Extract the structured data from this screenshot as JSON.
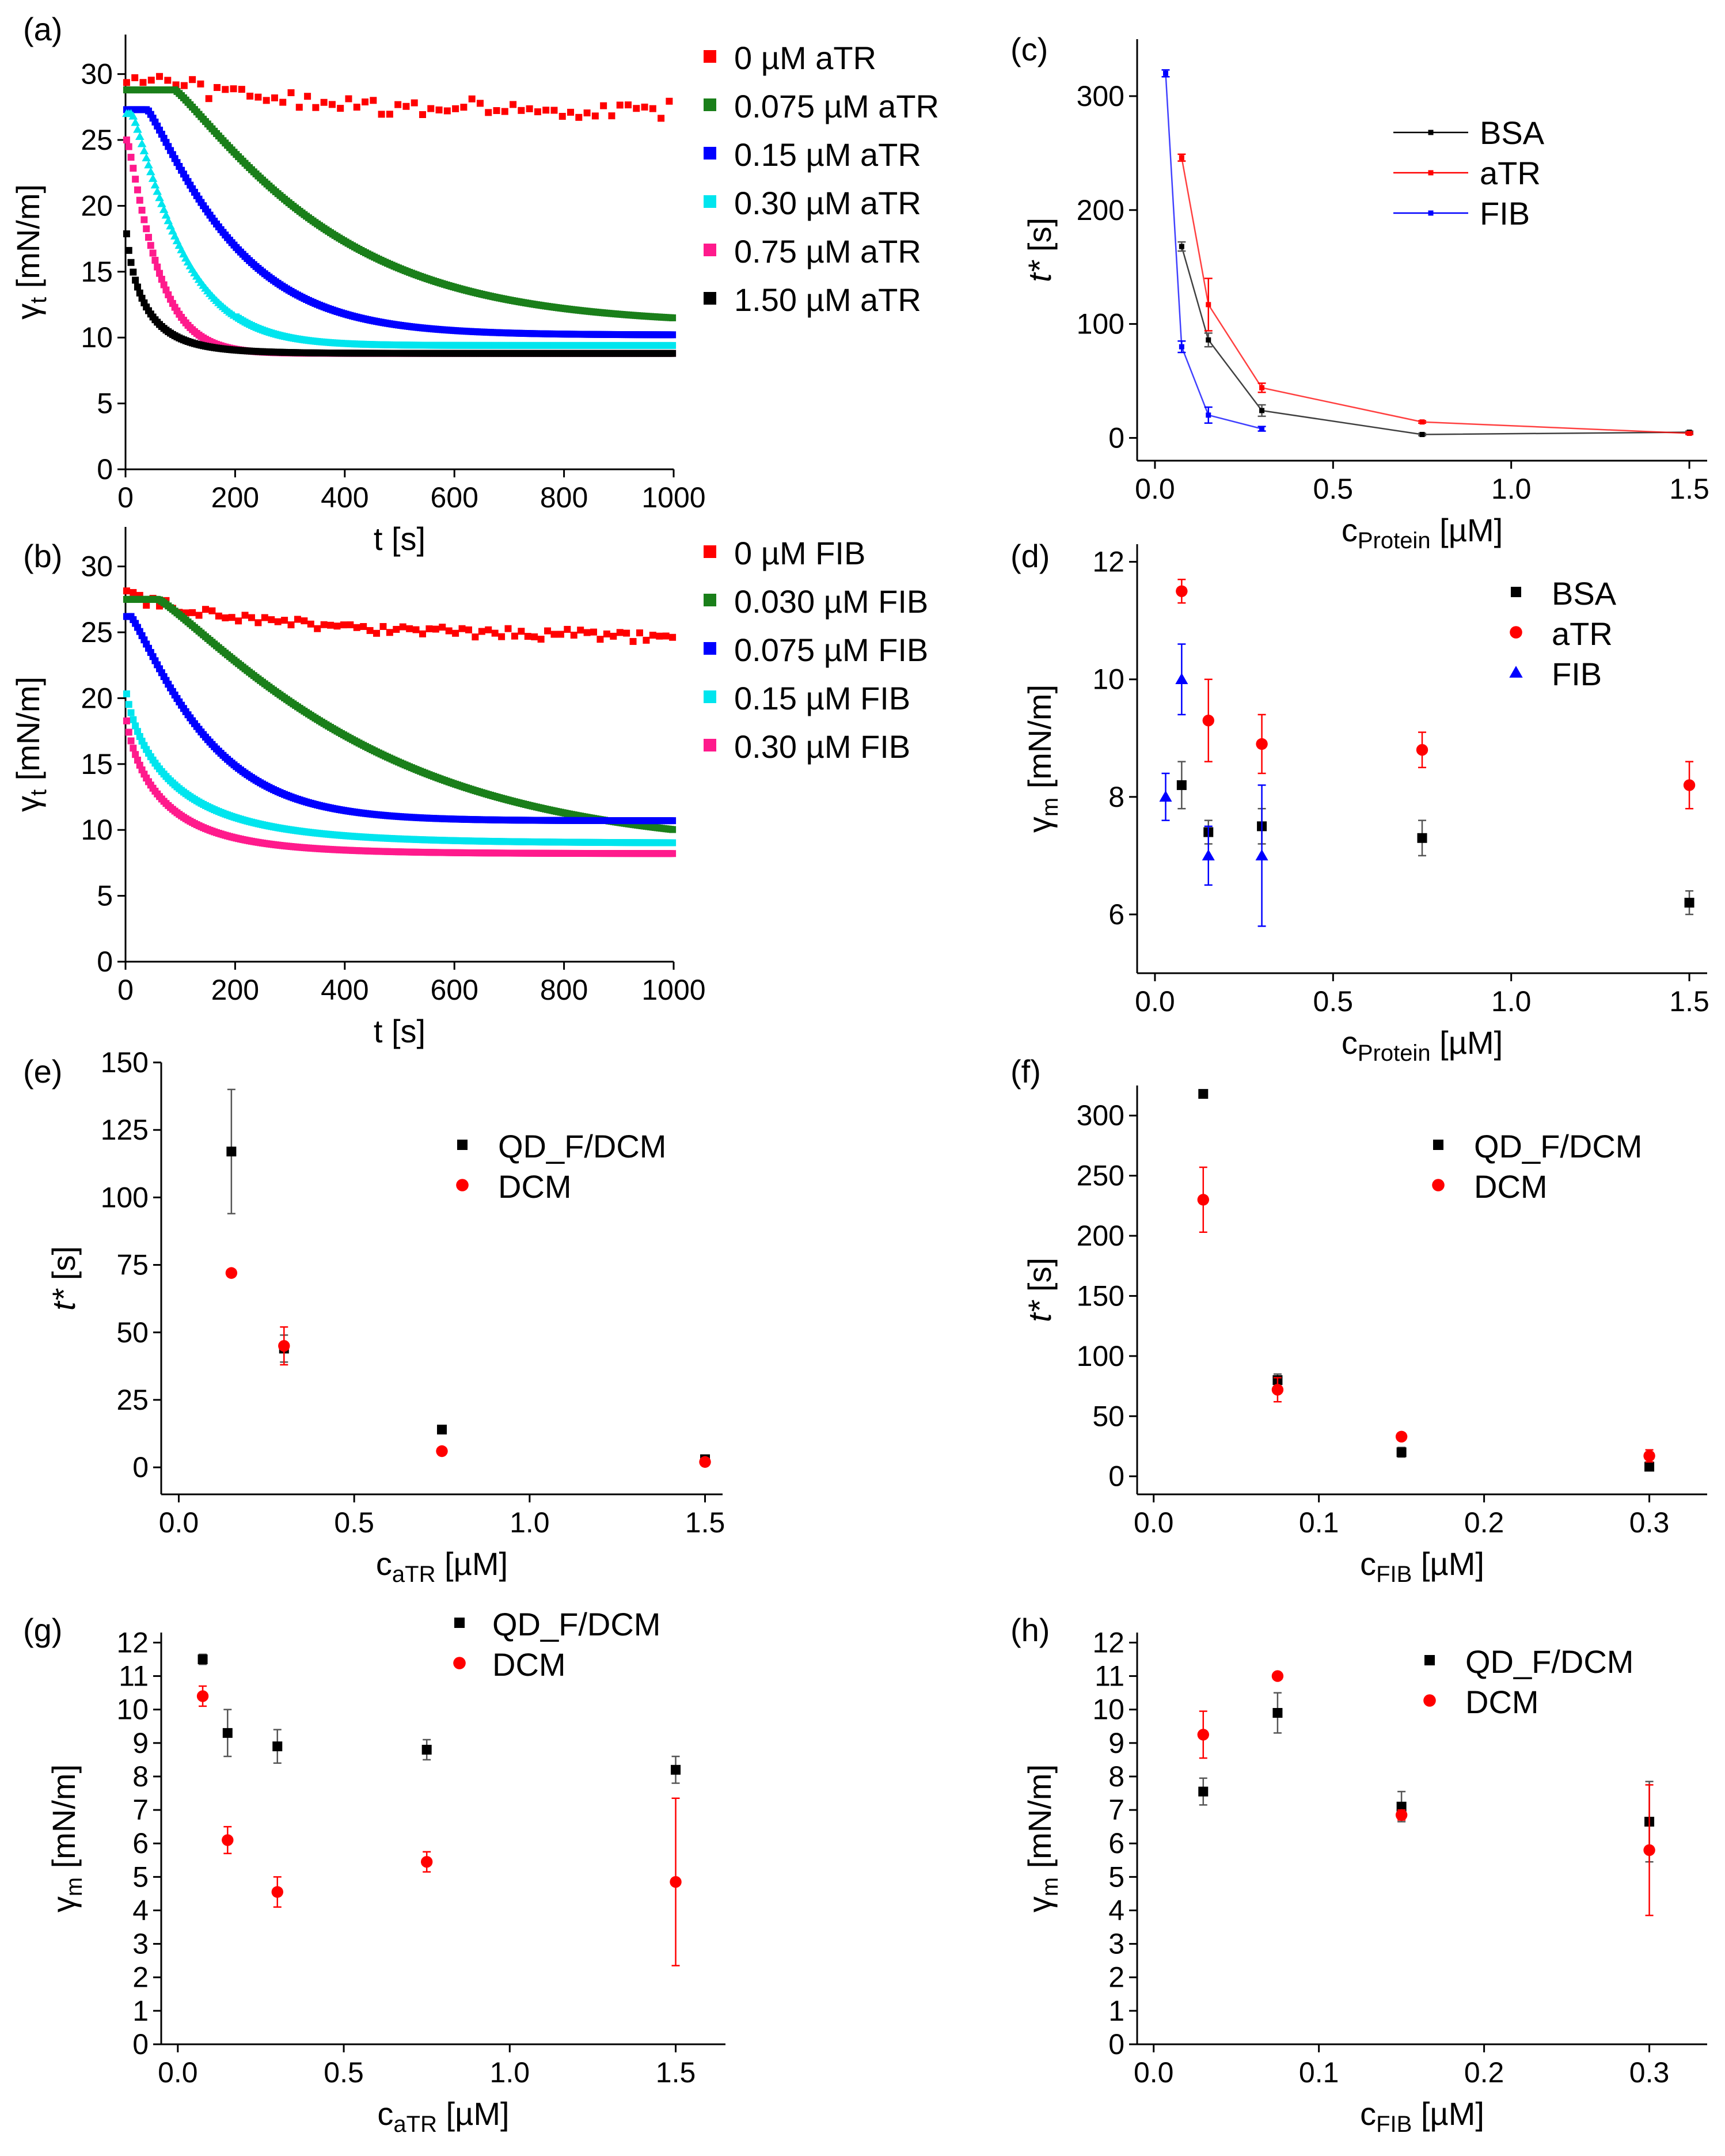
{
  "chart_data": [
    {
      "id": "a",
      "label": "(a)",
      "type": "scatter",
      "xlabel": "t [s]",
      "ylabel": "γt [mN/m]",
      "ylabel_main": "γ",
      "ylabel_sub": "t",
      "ylabel_rest": " [mN/m]",
      "xlim": [
        0,
        1000
      ],
      "ylim": [
        0,
        33
      ],
      "xticks": [
        0,
        200,
        400,
        600,
        800,
        1000
      ],
      "yticks": [
        0,
        5,
        10,
        15,
        20,
        25,
        30
      ],
      "legend_position": "right",
      "series": [
        {
          "name": "0 µM aTR",
          "color": "#ff0000",
          "marker": "square",
          "style": "noisy",
          "y0": 30.0,
          "yinf": 27.2,
          "tau": 250,
          "noise": 0.7,
          "step": 15
        },
        {
          "name": "0.075 µM aTR",
          "color": "#1a7f1a",
          "marker": "square",
          "style": "curve",
          "y0": 28.8,
          "yinf": 11.0,
          "tau": 300,
          "lag": 90,
          "step": 4
        },
        {
          "name": "0.15 µM aTR",
          "color": "#0000ff",
          "marker": "square",
          "style": "curve",
          "y0": 27.3,
          "yinf": 10.2,
          "tau": 170,
          "lag": 40,
          "step": 4
        },
        {
          "name": "0.30 µM aTR",
          "color": "#00e5ee",
          "marker": "triangle",
          "style": "curve",
          "y0": 27.0,
          "yinf": 9.4,
          "tau": 100,
          "lag": 12,
          "step": 4
        },
        {
          "name": "0.75 µM aTR",
          "color": "#ff1a8c",
          "marker": "square",
          "style": "curve",
          "y0": 25.0,
          "yinf": 8.8,
          "tau": 60,
          "lag": 3,
          "step": 4
        },
        {
          "name": "1.50 µM aTR",
          "color": "#000000",
          "marker": "square",
          "style": "curve",
          "y0": 19.0,
          "yinf": 8.8,
          "tau": 35,
          "lag": 0,
          "step": 4
        }
      ]
    },
    {
      "id": "b",
      "label": "(b)",
      "type": "scatter",
      "xlabel": "t [s]",
      "ylabel": "γt [mN/m]",
      "ylabel_main": "γ",
      "ylabel_sub": "t",
      "ylabel_rest": " [mN/m]",
      "xlim": [
        0,
        1000
      ],
      "ylim": [
        0,
        33
      ],
      "xticks": [
        0,
        200,
        400,
        600,
        800,
        1000
      ],
      "yticks": [
        0,
        5,
        10,
        15,
        20,
        25,
        30
      ],
      "legend_position": "right",
      "series": [
        {
          "name": "0 µM FIB",
          "color": "#ff0000",
          "marker": "square",
          "style": "noisy",
          "y0": 27.8,
          "yinf": 24.6,
          "tau": 300,
          "noise": 0.45,
          "step": 12
        },
        {
          "name": "0.030 µM FIB",
          "color": "#1a7f1a",
          "marker": "square",
          "style": "curve",
          "y0": 27.5,
          "yinf": 8.5,
          "tau": 420,
          "lag": 60,
          "step": 4
        },
        {
          "name": "0.075 µM FIB",
          "color": "#0000ff",
          "marker": "square",
          "style": "curve",
          "y0": 26.2,
          "yinf": 10.7,
          "tau": 150,
          "lag": 10,
          "step": 4
        },
        {
          "name": "0.15 µM FIB",
          "color": "#00e5ee",
          "marker": "square",
          "style": "curve",
          "y0": 21.0,
          "yinf": 9.0,
          "tau": 90,
          "lag": 0,
          "step": 4
        },
        {
          "name": "0.30 µM FIB",
          "color": "#ff1a8c",
          "marker": "square",
          "style": "curve",
          "y0": 19.0,
          "yinf": 8.2,
          "tau": 70,
          "lag": 0,
          "step": 4
        }
      ]
    },
    {
      "id": "c",
      "label": "(c)",
      "type": "line",
      "xlabel": "cProtein [µM]",
      "xlabel_main": "c",
      "xlabel_sub": "Protein",
      "xlabel_rest": " [µM]",
      "ylabel": "t* [s]",
      "ylabel_italic": "t*",
      "ylabel_rest": " [s]",
      "xlim": [
        -0.05,
        1.55
      ],
      "ylim": [
        -20,
        350
      ],
      "xticks": [
        0.0,
        0.5,
        1.0,
        1.5
      ],
      "xtick_labels": [
        "0.0",
        "0.5",
        "1.0",
        "1.5"
      ],
      "yticks": [
        0,
        100,
        200,
        300
      ],
      "legend_position": "top-center",
      "series": [
        {
          "name": "BSA",
          "color": "#000000",
          "marker": "square",
          "line": true,
          "x": [
            0.075,
            0.15,
            0.3,
            0.75,
            1.5
          ],
          "y": [
            168,
            86,
            24,
            3,
            5
          ],
          "err": [
            4,
            6,
            5,
            1,
            1
          ]
        },
        {
          "name": "aTR",
          "color": "#ff0000",
          "marker": "square",
          "line": true,
          "x": [
            0.075,
            0.15,
            0.3,
            0.75,
            1.5
          ],
          "y": [
            246,
            117,
            44,
            14,
            4
          ],
          "err": [
            3,
            23,
            4,
            1,
            1
          ]
        },
        {
          "name": "FIB",
          "color": "#0000ff",
          "marker": "square",
          "line": true,
          "x": [
            0.03,
            0.075,
            0.15,
            0.3
          ],
          "y": [
            320,
            80,
            20,
            8
          ],
          "err": [
            3,
            5,
            7,
            2
          ]
        }
      ]
    },
    {
      "id": "d",
      "label": "(d)",
      "type": "scatter",
      "xlabel": "cProtein [µM]",
      "xlabel_main": "c",
      "xlabel_sub": "Protein",
      "xlabel_rest": " [µM]",
      "ylabel": "γm [mN/m]",
      "ylabel_main": "γ",
      "ylabel_sub": "m",
      "ylabel_rest": " [mN/m]",
      "xlim": [
        -0.05,
        1.55
      ],
      "ylim": [
        5,
        12.3
      ],
      "xticks": [
        0.0,
        0.5,
        1.0,
        1.5
      ],
      "xtick_labels": [
        "0.0",
        "0.5",
        "1.0",
        "1.5"
      ],
      "yticks": [
        6,
        8,
        10,
        12
      ],
      "legend_position": "top-center",
      "series": [
        {
          "name": "BSA",
          "color": "#000000",
          "marker": "square",
          "x": [
            0.075,
            0.15,
            0.3,
            0.75,
            1.5
          ],
          "y": [
            8.2,
            7.4,
            7.5,
            7.3,
            6.2
          ],
          "err": [
            0.4,
            0.2,
            0.3,
            0.3,
            0.2
          ]
        },
        {
          "name": "aTR",
          "color": "#ff0000",
          "marker": "circle",
          "x": [
            0.075,
            0.15,
            0.3,
            0.75,
            1.5
          ],
          "y": [
            11.5,
            9.3,
            8.9,
            8.8,
            8.2
          ],
          "err": [
            0.2,
            0.7,
            0.5,
            0.3,
            0.4
          ]
        },
        {
          "name": "FIB",
          "color": "#0000ff",
          "marker": "triangle",
          "x": [
            0.03,
            0.075,
            0.15,
            0.3
          ],
          "y": [
            8.0,
            10.0,
            7.0,
            7.0
          ],
          "err": [
            0.4,
            0.6,
            0.5,
            1.2
          ]
        }
      ]
    },
    {
      "id": "e",
      "label": "(e)",
      "type": "scatter",
      "xlabel": "caTR [µM]",
      "xlabel_main": "c",
      "xlabel_sub": "aTR",
      "xlabel_rest": " [µM]",
      "ylabel": "t* [s]",
      "ylabel_italic": "t*",
      "ylabel_rest": " [s]",
      "xlim": [
        -0.05,
        1.55
      ],
      "ylim": [
        -10,
        150
      ],
      "xticks": [
        0.0,
        0.5,
        1.0,
        1.5
      ],
      "xtick_labels": [
        "0.0",
        "0.5",
        "1.0",
        "1.5"
      ],
      "yticks": [
        0,
        25,
        50,
        75,
        100,
        125,
        150
      ],
      "legend_position": "top-center",
      "series": [
        {
          "name": "QD_F/DCM",
          "color": "#000000",
          "marker": "square",
          "x": [
            0.15,
            0.3,
            0.75,
            1.5
          ],
          "y": [
            117,
            44,
            14,
            3
          ],
          "err": [
            23,
            5,
            1,
            1
          ]
        },
        {
          "name": "DCM",
          "color": "#ff0000",
          "marker": "circle",
          "x": [
            0.15,
            0.3,
            0.75,
            1.5
          ],
          "y": [
            72,
            45,
            6,
            2
          ],
          "err": [
            1,
            7,
            1,
            1
          ]
        }
      ]
    },
    {
      "id": "f",
      "label": "(f)",
      "type": "scatter",
      "xlabel": "cFIB [µM]",
      "xlabel_main": "c",
      "xlabel_sub": "FIB",
      "xlabel_rest": " [µM]",
      "ylabel": "t* [s]",
      "ylabel_italic": "t*",
      "ylabel_rest": " [s]",
      "xlim": [
        -0.01,
        0.335
      ],
      "ylim": [
        -15,
        325
      ],
      "xticks": [
        0.0,
        0.1,
        0.2,
        0.3
      ],
      "xtick_labels": [
        "0.0",
        "0.1",
        "0.2",
        "0.3"
      ],
      "yticks": [
        0,
        50,
        100,
        150,
        200,
        250,
        300
      ],
      "legend_position": "top-center",
      "series": [
        {
          "name": "QD_F/DCM",
          "color": "#000000",
          "marker": "square",
          "x": [
            0.03,
            0.075,
            0.15,
            0.3
          ],
          "y": [
            318,
            80,
            20,
            8
          ],
          "err": [
            2,
            5,
            4,
            2
          ]
        },
        {
          "name": "DCM",
          "color": "#ff0000",
          "marker": "circle",
          "x": [
            0.03,
            0.075,
            0.15,
            0.3
          ],
          "y": [
            230,
            72,
            33,
            17
          ],
          "err": [
            27,
            10,
            3,
            5
          ]
        }
      ]
    },
    {
      "id": "g",
      "label": "(g)",
      "type": "scatter",
      "xlabel": "caTR [µM]",
      "xlabel_main": "c",
      "xlabel_sub": "aTR",
      "xlabel_rest": " [µM]",
      "ylabel": "γm [mN/m]",
      "ylabel_main": "γ",
      "ylabel_sub": "m",
      "ylabel_rest": " [mN/m]",
      "xlim": [
        -0.05,
        1.65
      ],
      "ylim": [
        0,
        12.3
      ],
      "xticks": [
        0.0,
        0.5,
        1.0,
        1.5
      ],
      "xtick_labels": [
        "0.0",
        "0.5",
        "1.0",
        "1.5"
      ],
      "yticks": [
        0,
        1,
        2,
        3,
        4,
        5,
        6,
        7,
        8,
        9,
        10,
        11,
        12
      ],
      "legend_position": "top-right",
      "series": [
        {
          "name": "QD_F/DCM",
          "color": "#000000",
          "marker": "square",
          "x": [
            0.075,
            0.15,
            0.3,
            0.75,
            1.5
          ],
          "y": [
            11.5,
            9.3,
            8.9,
            8.8,
            8.2
          ],
          "err": [
            0.15,
            0.7,
            0.5,
            0.3,
            0.4
          ]
        },
        {
          "name": "DCM",
          "color": "#ff0000",
          "marker": "circle",
          "x": [
            0.075,
            0.15,
            0.3,
            0.75,
            1.5
          ],
          "y": [
            10.4,
            6.1,
            4.55,
            5.45,
            4.85
          ],
          "err": [
            0.3,
            0.4,
            0.45,
            0.3,
            2.5
          ]
        }
      ]
    },
    {
      "id": "h",
      "label": "(h)",
      "type": "scatter",
      "xlabel": "cFIB [µM]",
      "xlabel_main": "c",
      "xlabel_sub": "FIB",
      "xlabel_rest": " [µM]",
      "ylabel": "γm [mN/m]",
      "ylabel_main": "γ",
      "ylabel_sub": "m",
      "ylabel_rest": " [mN/m]",
      "xlim": [
        -0.01,
        0.335
      ],
      "ylim": [
        0,
        12.3
      ],
      "xticks": [
        0.0,
        0.1,
        0.2,
        0.3
      ],
      "xtick_labels": [
        "0.0",
        "0.1",
        "0.2",
        "0.3"
      ],
      "yticks": [
        0,
        1,
        2,
        3,
        4,
        5,
        6,
        7,
        8,
        9,
        10,
        11,
        12
      ],
      "legend_position": "top-right",
      "series": [
        {
          "name": "QD_F/DCM",
          "color": "#000000",
          "marker": "square",
          "x": [
            0.03,
            0.075,
            0.15,
            0.3
          ],
          "y": [
            7.55,
            9.9,
            7.1,
            6.65
          ],
          "err": [
            0.4,
            0.6,
            0.45,
            1.2
          ]
        },
        {
          "name": "DCM",
          "color": "#ff0000",
          "marker": "circle",
          "x": [
            0.03,
            0.075,
            0.15,
            0.3
          ],
          "y": [
            9.25,
            11.0,
            6.85,
            5.8
          ],
          "err": [
            0.7,
            0.1,
            0.15,
            1.95
          ]
        }
      ]
    }
  ]
}
